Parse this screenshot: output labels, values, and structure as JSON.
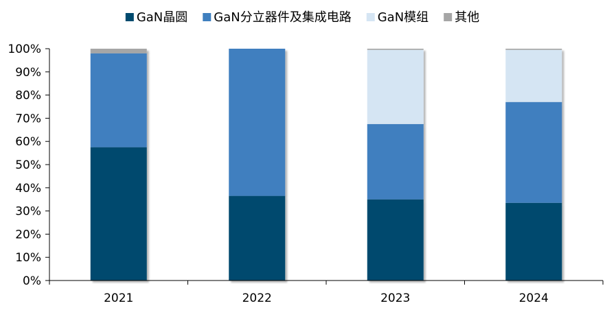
{
  "chart_data": {
    "type": "bar",
    "stacked": true,
    "categories": [
      "2021",
      "2022",
      "2023",
      "2024"
    ],
    "series": [
      {
        "name": "GaN晶圆",
        "color": "#004a6e",
        "values": [
          57.5,
          36.5,
          35,
          33.5
        ]
      },
      {
        "name": "GaN分立器件及集成电路",
        "color": "#3f7fbf",
        "values": [
          40.5,
          63.5,
          32.5,
          43.5
        ]
      },
      {
        "name": "GaN模组",
        "color": "#d5e5f3",
        "values": [
          0,
          0,
          32,
          22.5
        ]
      },
      {
        "name": "其他",
        "color": "#a6a6a6",
        "values": [
          2,
          0,
          0.5,
          0.5
        ]
      }
    ],
    "y_ticks": [
      "0%",
      "10%",
      "20%",
      "30%",
      "40%",
      "50%",
      "60%",
      "70%",
      "80%",
      "90%",
      "100%"
    ],
    "ylim": [
      0,
      100
    ],
    "legend_position": "top",
    "grid": false
  }
}
